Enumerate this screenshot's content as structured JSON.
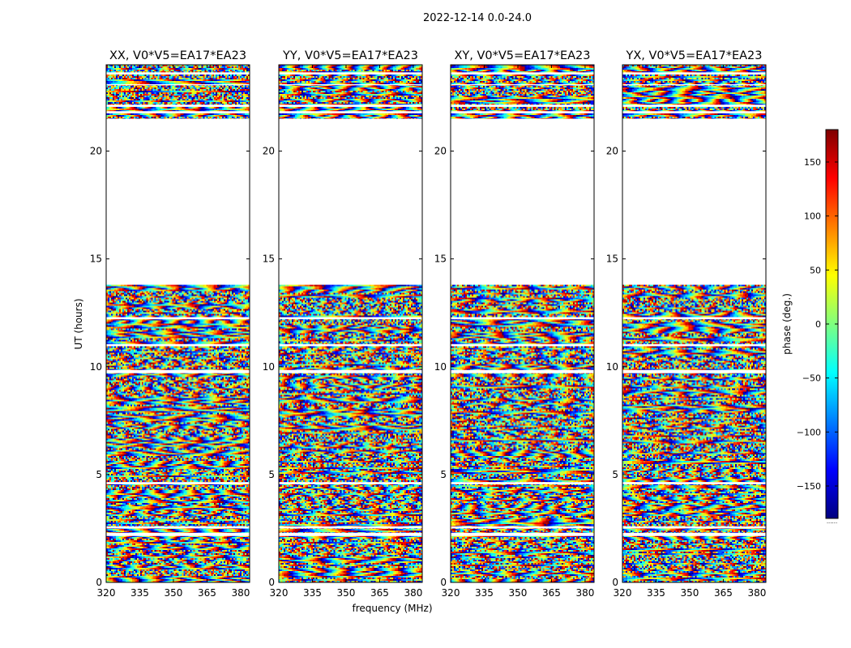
{
  "figure": {
    "suptitle": "2022-12-14 0.0-24.0",
    "xlabel": "frequency (MHz)",
    "ylabel": "UT (hours)"
  },
  "colorbar": {
    "label": "phase (deg.)",
    "ticks": [
      150,
      100,
      50,
      0,
      -50,
      -100,
      -150
    ],
    "tick_labels": [
      "150",
      "100",
      "50",
      "0",
      "−50",
      "−100",
      "−150"
    ],
    "range": [
      -180,
      180
    ],
    "colormap": "jet",
    "colors": [
      "#00007f",
      "#0000ff",
      "#007fff",
      "#00ffff",
      "#7fff7f",
      "#ffff00",
      "#ff7f00",
      "#ff0000",
      "#7f0000"
    ],
    "under_over_text": "······"
  },
  "chart_data": {
    "type": "heatmap",
    "value_label": "phase (deg.)",
    "x_range": [
      320,
      384
    ],
    "y_range": [
      0,
      24
    ],
    "xticks": [
      320,
      335,
      350,
      365,
      380
    ],
    "yticks": [
      0,
      5,
      10,
      15,
      20
    ],
    "panels": [
      {
        "title": "XX, V0*V5=EA17*EA23",
        "polarization": "XX"
      },
      {
        "title": "YY, V0*V5=EA17*EA23",
        "polarization": "YY"
      },
      {
        "title": "XY, V0*V5=EA17*EA23",
        "polarization": "XY"
      },
      {
        "title": "YX, V0*V5=EA17*EA23",
        "polarization": "YX"
      }
    ],
    "empty_intervals_hours": [
      [
        13.8,
        21.5
      ],
      [
        2.15,
        2.3
      ],
      [
        2.5,
        2.6
      ],
      [
        4.55,
        4.65
      ],
      [
        9.7,
        9.85
      ],
      [
        10.95,
        11.05
      ],
      [
        12.2,
        12.3
      ],
      [
        21.75,
        21.85
      ],
      [
        22.05,
        22.15
      ],
      [
        23.05,
        23.1
      ],
      [
        23.55,
        23.65
      ]
    ]
  }
}
